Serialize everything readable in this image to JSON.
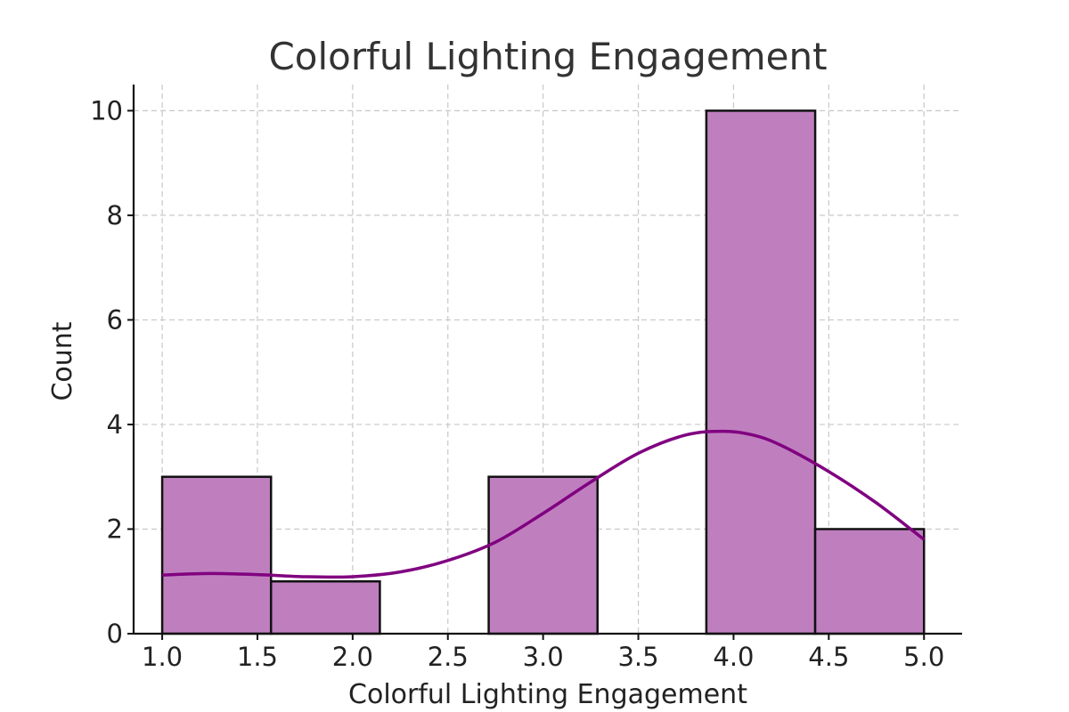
{
  "chart_data": {
    "type": "bar",
    "title": "Colorful Lighting Engagement",
    "xlabel": "Colorful Lighting Engagement",
    "ylabel": "Count",
    "bins": [
      {
        "start": 1.0,
        "end": 1.5714,
        "count": 3
      },
      {
        "start": 1.5714,
        "end": 2.1429,
        "count": 1
      },
      {
        "start": 2.1429,
        "end": 2.7143,
        "count": 0
      },
      {
        "start": 2.7143,
        "end": 3.2857,
        "count": 3
      },
      {
        "start": 3.2857,
        "end": 3.8571,
        "count": 0
      },
      {
        "start": 3.8571,
        "end": 4.4286,
        "count": 10
      },
      {
        "start": 4.4286,
        "end": 5.0,
        "count": 2
      }
    ],
    "kde": {
      "x": [
        1.0,
        1.25,
        1.5,
        1.75,
        2.0,
        2.25,
        2.5,
        2.75,
        3.0,
        3.25,
        3.5,
        3.75,
        3.95,
        4.1,
        4.25,
        4.5,
        4.75,
        5.0
      ],
      "y": [
        1.12,
        1.15,
        1.13,
        1.09,
        1.09,
        1.18,
        1.4,
        1.75,
        2.3,
        2.9,
        3.45,
        3.8,
        3.87,
        3.8,
        3.6,
        3.1,
        2.5,
        1.8
      ]
    },
    "xticks": [
      "1.0",
      "1.5",
      "2.0",
      "2.5",
      "3.0",
      "3.5",
      "4.0",
      "4.5",
      "5.0"
    ],
    "yticks": [
      "0",
      "2",
      "4",
      "6",
      "8",
      "10"
    ],
    "xlim": [
      0.85,
      5.2
    ],
    "ylim": [
      0,
      10.5
    ],
    "grid": true,
    "colors": {
      "bar_fill": "#bf7fbf",
      "bar_edge": "#111111",
      "kde_line": "#800080"
    }
  }
}
